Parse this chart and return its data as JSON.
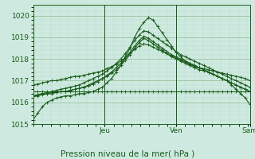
{
  "bg_color": "#ceeae0",
  "line_color": "#1a5c1a",
  "grid_color_minor": "#b8d8c8",
  "grid_color_major": "#90b890",
  "ylabel": "Pression niveau de la mer( hPa )",
  "ylim": [
    1015.0,
    1020.5
  ],
  "yticks": [
    1015,
    1016,
    1017,
    1018,
    1019,
    1020
  ],
  "day_labels": [
    "Jeu",
    "Ven",
    "Sam"
  ],
  "day_positions": [
    0.33,
    0.66,
    1.0
  ],
  "n_hours": 48,
  "series": [
    [
      1015.2,
      1015.5,
      1015.8,
      1016.0,
      1016.1,
      1016.2,
      1016.25,
      1016.3,
      1016.3,
      1016.35,
      1016.4,
      1016.4,
      1016.45,
      1016.5,
      1016.6,
      1016.7,
      1016.9,
      1017.1,
      1017.4,
      1017.7,
      1018.1,
      1018.5,
      1019.0,
      1019.4,
      1019.7,
      1019.9,
      1019.8,
      1019.5,
      1019.2,
      1018.9,
      1018.6,
      1018.3,
      1018.1,
      1017.9,
      1017.8,
      1017.7,
      1017.6,
      1017.5,
      1017.4,
      1017.3,
      1017.2,
      1017.1,
      1017.0,
      1016.8,
      1016.6,
      1016.4,
      1016.2,
      1015.9
    ],
    [
      1016.3,
      1016.3,
      1016.35,
      1016.4,
      1016.4,
      1016.45,
      1016.5,
      1016.5,
      1016.55,
      1016.6,
      1016.65,
      1016.7,
      1016.8,
      1016.9,
      1017.0,
      1017.1,
      1017.2,
      1017.35,
      1017.5,
      1017.7,
      1017.95,
      1018.2,
      1018.5,
      1018.75,
      1018.95,
      1018.85,
      1018.7,
      1018.55,
      1018.4,
      1018.25,
      1018.1,
      1018.0,
      1017.9,
      1017.8,
      1017.7,
      1017.6,
      1017.5,
      1017.45,
      1017.4,
      1017.3,
      1017.2,
      1017.1,
      1017.0,
      1016.9,
      1016.8,
      1016.7,
      1016.6,
      1016.5
    ],
    [
      1016.3,
      1016.35,
      1016.4,
      1016.45,
      1016.5,
      1016.55,
      1016.6,
      1016.65,
      1016.7,
      1016.75,
      1016.8,
      1016.9,
      1017.0,
      1017.1,
      1017.2,
      1017.3,
      1017.45,
      1017.6,
      1017.8,
      1018.0,
      1018.25,
      1018.55,
      1018.85,
      1019.1,
      1019.3,
      1019.25,
      1019.1,
      1018.95,
      1018.8,
      1018.65,
      1018.5,
      1018.35,
      1018.2,
      1018.1,
      1018.0,
      1017.9,
      1017.8,
      1017.7,
      1017.6,
      1017.5,
      1017.4,
      1017.3,
      1017.2,
      1017.1,
      1017.0,
      1016.9,
      1016.8,
      1016.7
    ],
    [
      1016.8,
      1016.85,
      1016.9,
      1016.95,
      1017.0,
      1017.0,
      1017.05,
      1017.1,
      1017.15,
      1017.2,
      1017.2,
      1017.25,
      1017.3,
      1017.35,
      1017.4,
      1017.45,
      1017.55,
      1017.65,
      1017.75,
      1017.9,
      1018.05,
      1018.25,
      1018.45,
      1018.6,
      1018.7,
      1018.65,
      1018.55,
      1018.45,
      1018.35,
      1018.25,
      1018.15,
      1018.05,
      1017.95,
      1017.85,
      1017.75,
      1017.65,
      1017.6,
      1017.55,
      1017.5,
      1017.45,
      1017.4,
      1017.35,
      1017.3,
      1017.25,
      1017.2,
      1017.15,
      1017.1,
      1017.0
    ],
    [
      1016.5,
      1016.5,
      1016.5,
      1016.5,
      1016.5,
      1016.5,
      1016.5,
      1016.5,
      1016.5,
      1016.5,
      1016.5,
      1016.5,
      1016.5,
      1016.5,
      1016.5,
      1016.5,
      1016.5,
      1016.5,
      1016.5,
      1016.5,
      1016.5,
      1016.5,
      1016.5,
      1016.5,
      1016.5,
      1016.5,
      1016.5,
      1016.5,
      1016.5,
      1016.5,
      1016.5,
      1016.5,
      1016.5,
      1016.5,
      1016.5,
      1016.5,
      1016.5,
      1016.5,
      1016.5,
      1016.5,
      1016.5,
      1016.5,
      1016.5,
      1016.5,
      1016.5,
      1016.5,
      1016.5,
      1016.5
    ],
    [
      1016.3,
      1016.35,
      1016.4,
      1016.4,
      1016.45,
      1016.45,
      1016.5,
      1016.5,
      1016.55,
      1016.6,
      1016.65,
      1016.7,
      1016.75,
      1016.85,
      1016.95,
      1017.1,
      1017.25,
      1017.4,
      1017.6,
      1017.8,
      1018.05,
      1018.3,
      1018.6,
      1018.85,
      1019.05,
      1018.95,
      1018.8,
      1018.65,
      1018.5,
      1018.35,
      1018.2,
      1018.1,
      1018.0,
      1017.9,
      1017.8,
      1017.7,
      1017.6,
      1017.5,
      1017.4,
      1017.3,
      1017.2,
      1017.1,
      1017.0,
      1016.9,
      1016.8,
      1016.7,
      1016.6,
      1016.5
    ]
  ],
  "tick_fontsize": 6.5,
  "label_fontsize": 7.5,
  "linewidth": 0.8,
  "markersize": 2.5
}
